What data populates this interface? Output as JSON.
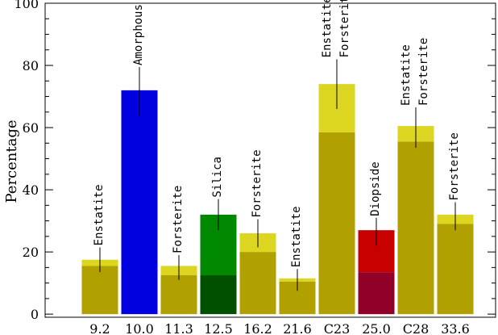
{
  "chart_data": {
    "type": "bar",
    "title": "",
    "xlabel": "",
    "ylabel": "Percentage",
    "ylim": [
      -1,
      100
    ],
    "yticks": [
      0,
      20,
      40,
      60,
      80,
      100
    ],
    "grid": false,
    "legend": "none",
    "categories": [
      "9.2",
      "10.0",
      "11.3",
      "12.5",
      "16.2",
      "21.6",
      "C23",
      "25.0",
      "C28",
      "33.6"
    ],
    "bars": [
      {
        "category": "9.2",
        "lower": 15.5,
        "total": 17.5,
        "err_low": 13.5,
        "err_high": 21.5,
        "annotations": [
          "Enstatite"
        ],
        "lower_color": "#b0a000",
        "upper_color": "#dcd620"
      },
      {
        "category": "10.0",
        "lower": 72.0,
        "total": 72.0,
        "err_low": 63.5,
        "err_high": 79.5,
        "annotations": [
          "Amorphous"
        ],
        "lower_color": "#0000e0",
        "upper_color": "#0000e0"
      },
      {
        "category": "11.3",
        "lower": 12.5,
        "total": 15.5,
        "err_low": 11.0,
        "err_high": 19.0,
        "annotations": [
          "Forsterite"
        ],
        "lower_color": "#b0a000",
        "upper_color": "#dcd620"
      },
      {
        "category": "12.5",
        "lower": 12.5,
        "total": 32.0,
        "err_low": 27.0,
        "err_high": 37.0,
        "annotations": [
          "Silica"
        ],
        "lower_color": "#005000",
        "upper_color": "#008800"
      },
      {
        "category": "16.2",
        "lower": 20.0,
        "total": 26.0,
        "err_low": 21.5,
        "err_high": 30.5,
        "annotations": [
          "Forsterite"
        ],
        "lower_color": "#b0a000",
        "upper_color": "#dcd620"
      },
      {
        "category": "21.6",
        "lower": 10.5,
        "total": 11.5,
        "err_low": 7.5,
        "err_high": 14.5,
        "annotations": [
          "Enstatite"
        ],
        "lower_color": "#b0a000",
        "upper_color": "#dcd620"
      },
      {
        "category": "C23",
        "lower": 58.5,
        "total": 74.0,
        "err_low": 66.0,
        "err_high": 82.0,
        "annotations": [
          "Enstatite",
          "Forsterite"
        ],
        "lower_color": "#b0a000",
        "upper_color": "#dcd620"
      },
      {
        "category": "25.0",
        "lower": 13.5,
        "total": 27.0,
        "err_low": 22.0,
        "err_high": 31.0,
        "annotations": [
          "Diopside"
        ],
        "lower_color": "#900028",
        "upper_color": "#c80000"
      },
      {
        "category": "C28",
        "lower": 55.5,
        "total": 60.5,
        "err_low": 53.5,
        "err_high": 66.5,
        "annotations": [
          "Enstatite",
          "Forsterite"
        ],
        "lower_color": "#b0a000",
        "upper_color": "#dcd620"
      },
      {
        "category": "33.6",
        "lower": 29.0,
        "total": 32.0,
        "err_low": 27.0,
        "err_high": 36.0,
        "annotations": [
          "Forsterite"
        ],
        "lower_color": "#b0a000",
        "upper_color": "#dcd620"
      }
    ]
  }
}
